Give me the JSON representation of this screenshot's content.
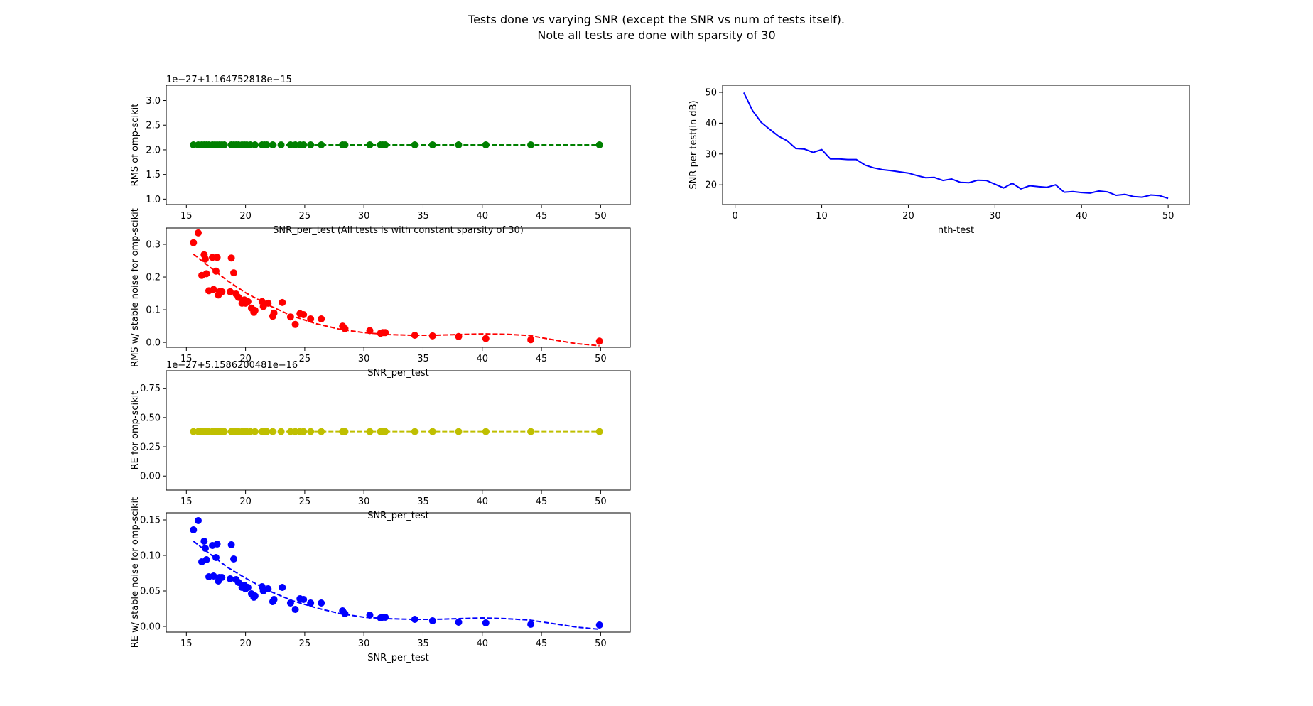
{
  "figure": {
    "title_line1": "Tests done vs varying SNR (except the SNR vs num of tests itself).",
    "title_line2": "Note all tests are done with sparsity of 30"
  },
  "chart_data": [
    {
      "id": "rms-omp",
      "type": "scatter",
      "ylabel": "RMS of omp-scikit",
      "xlabel": "SNR_per_test  (All tests is with constant sparsity of 30)",
      "offset_text": "1e−27+1.164752818e−15",
      "color": "#008000",
      "xlim": [
        13.3,
        52.5
      ],
      "ylim": [
        0.89,
        3.31
      ],
      "xticks": [
        15,
        20,
        25,
        30,
        35,
        40,
        45,
        50
      ],
      "yticks": [
        1.0,
        1.5,
        2.0,
        2.5,
        3.0
      ],
      "ytick_labels": [
        "1.0",
        "1.5",
        "2.0",
        "2.5",
        "3.0"
      ],
      "x": [
        15.6,
        16.0,
        16.3,
        16.5,
        16.7,
        16.9,
        17.2,
        17.4,
        17.6,
        17.8,
        18.0,
        18.2,
        18.8,
        19.0,
        19.2,
        19.4,
        19.7,
        19.9,
        20.1,
        20.4,
        20.8,
        21.4,
        21.6,
        21.8,
        22.3,
        23.0,
        23.8,
        24.2,
        24.6,
        24.9,
        25.5,
        26.4,
        28.2,
        28.4,
        30.5,
        31.4,
        31.6,
        31.8,
        34.3,
        35.8,
        38.0,
        40.3,
        44.1,
        49.9
      ],
      "y": [
        2.1,
        2.1,
        2.1,
        2.1,
        2.1,
        2.1,
        2.1,
        2.1,
        2.1,
        2.1,
        2.1,
        2.1,
        2.1,
        2.1,
        2.1,
        2.1,
        2.1,
        2.1,
        2.1,
        2.1,
        2.1,
        2.1,
        2.1,
        2.1,
        2.1,
        2.1,
        2.1,
        2.1,
        2.1,
        2.1,
        2.1,
        2.1,
        2.1,
        2.1,
        2.1,
        2.1,
        2.1,
        2.1,
        2.1,
        2.1,
        2.1,
        2.1,
        2.1,
        2.1
      ],
      "fit_x": [
        15.6,
        49.9
      ],
      "fit_y": [
        2.1,
        2.1
      ]
    },
    {
      "id": "rms-stable",
      "type": "scatter",
      "ylabel": "RMS w/ stable noise for omp-scikit",
      "xlabel": "SNR_per_test",
      "offset_text": "",
      "color": "#ff0000",
      "xlim": [
        13.3,
        52.5
      ],
      "ylim": [
        -0.015,
        0.35
      ],
      "xticks": [
        15,
        20,
        25,
        30,
        35,
        40,
        45,
        50
      ],
      "yticks": [
        0.0,
        0.1,
        0.2,
        0.3
      ],
      "ytick_labels": [
        "0.0",
        "0.1",
        "0.2",
        "0.3"
      ],
      "x": [
        15.6,
        16.0,
        16.3,
        16.5,
        16.6,
        16.7,
        16.9,
        17.2,
        17.3,
        17.5,
        17.6,
        17.7,
        17.8,
        18.0,
        18.7,
        18.8,
        19.0,
        19.2,
        19.4,
        19.7,
        19.9,
        20.0,
        20.2,
        20.5,
        20.7,
        20.8,
        21.4,
        21.5,
        21.9,
        22.3,
        22.4,
        23.1,
        23.8,
        24.2,
        24.6,
        24.9,
        25.5,
        26.4,
        28.2,
        28.4,
        30.5,
        31.4,
        31.6,
        31.8,
        34.3,
        35.8,
        38.0,
        40.3,
        44.1,
        49.9
      ],
      "y": [
        0.305,
        0.335,
        0.205,
        0.268,
        0.255,
        0.21,
        0.158,
        0.26,
        0.162,
        0.218,
        0.26,
        0.145,
        0.155,
        0.155,
        0.155,
        0.258,
        0.213,
        0.148,
        0.138,
        0.12,
        0.13,
        0.12,
        0.125,
        0.105,
        0.092,
        0.098,
        0.125,
        0.11,
        0.12,
        0.08,
        0.09,
        0.122,
        0.078,
        0.055,
        0.088,
        0.085,
        0.072,
        0.072,
        0.05,
        0.042,
        0.036,
        0.028,
        0.03,
        0.03,
        0.022,
        0.02,
        0.018,
        0.012,
        0.008,
        0.004
      ],
      "fit_x": [
        15.6,
        17,
        18.5,
        20,
        22,
        24,
        26,
        28,
        30,
        32,
        34,
        36,
        38,
        40,
        42,
        44,
        46,
        48,
        49.9
      ],
      "fit_y": [
        0.27,
        0.23,
        0.188,
        0.152,
        0.113,
        0.08,
        0.057,
        0.04,
        0.03,
        0.024,
        0.022,
        0.022,
        0.024,
        0.026,
        0.025,
        0.021,
        0.008,
        -0.004,
        -0.01
      ]
    },
    {
      "id": "re-omp",
      "type": "scatter",
      "ylabel": "RE for omp-scikit",
      "xlabel": "SNR_per_test",
      "offset_text": "1e−27+5.1586200481e−16",
      "color": "#bfbf00",
      "xlim": [
        13.3,
        52.5
      ],
      "ylim": [
        -0.12,
        0.9
      ],
      "xticks": [
        15,
        20,
        25,
        30,
        35,
        40,
        45,
        50
      ],
      "yticks": [
        0.0,
        0.25,
        0.5,
        0.75
      ],
      "ytick_labels": [
        "0.00",
        "0.25",
        "0.50",
        "0.75"
      ],
      "x": [
        15.6,
        16.0,
        16.3,
        16.5,
        16.7,
        16.9,
        17.2,
        17.4,
        17.6,
        17.8,
        18.0,
        18.2,
        18.8,
        19.0,
        19.2,
        19.4,
        19.7,
        19.9,
        20.1,
        20.4,
        20.8,
        21.4,
        21.6,
        21.8,
        22.3,
        23.0,
        23.8,
        24.2,
        24.6,
        24.9,
        25.5,
        26.4,
        28.2,
        28.4,
        30.5,
        31.4,
        31.6,
        31.8,
        34.3,
        35.8,
        38.0,
        40.3,
        44.1,
        49.9
      ],
      "y": [
        0.38,
        0.38,
        0.38,
        0.38,
        0.38,
        0.38,
        0.38,
        0.38,
        0.38,
        0.38,
        0.38,
        0.38,
        0.38,
        0.38,
        0.38,
        0.38,
        0.38,
        0.38,
        0.38,
        0.38,
        0.38,
        0.38,
        0.38,
        0.38,
        0.38,
        0.38,
        0.38,
        0.38,
        0.38,
        0.38,
        0.38,
        0.38,
        0.38,
        0.38,
        0.38,
        0.38,
        0.38,
        0.38,
        0.38,
        0.38,
        0.38,
        0.38,
        0.38,
        0.38
      ],
      "fit_x": [
        15.6,
        49.9
      ],
      "fit_y": [
        0.38,
        0.38
      ]
    },
    {
      "id": "re-stable",
      "type": "scatter",
      "ylabel": "RE w/ stable noise for omp-scikit",
      "xlabel": "SNR_per_test",
      "offset_text": "",
      "color": "#0000ff",
      "xlim": [
        13.3,
        52.5
      ],
      "ylim": [
        -0.008,
        0.16
      ],
      "xticks": [
        15,
        20,
        25,
        30,
        35,
        40,
        45,
        50
      ],
      "yticks": [
        0.0,
        0.05,
        0.1,
        0.15
      ],
      "ytick_labels": [
        "0.00",
        "0.05",
        "0.10",
        "0.15"
      ],
      "x": [
        15.6,
        16.0,
        16.3,
        16.5,
        16.6,
        16.7,
        16.9,
        17.2,
        17.3,
        17.5,
        17.6,
        17.7,
        17.8,
        18.0,
        18.7,
        18.8,
        19.0,
        19.2,
        19.4,
        19.7,
        19.9,
        20.0,
        20.2,
        20.5,
        20.7,
        20.8,
        21.4,
        21.5,
        21.9,
        22.3,
        22.4,
        23.1,
        23.8,
        24.2,
        24.6,
        24.9,
        25.5,
        26.4,
        28.2,
        28.4,
        30.5,
        31.4,
        31.6,
        31.8,
        34.3,
        35.8,
        38.0,
        40.3,
        44.1,
        49.9
      ],
      "y": [
        0.136,
        0.149,
        0.091,
        0.12,
        0.11,
        0.094,
        0.07,
        0.114,
        0.071,
        0.097,
        0.116,
        0.064,
        0.069,
        0.069,
        0.067,
        0.115,
        0.095,
        0.066,
        0.062,
        0.055,
        0.058,
        0.053,
        0.055,
        0.046,
        0.041,
        0.043,
        0.056,
        0.05,
        0.053,
        0.035,
        0.038,
        0.055,
        0.033,
        0.024,
        0.039,
        0.038,
        0.033,
        0.033,
        0.022,
        0.018,
        0.016,
        0.012,
        0.013,
        0.013,
        0.01,
        0.008,
        0.006,
        0.005,
        0.003,
        0.002
      ],
      "fit_x": [
        15.6,
        17,
        18.5,
        20,
        22,
        24,
        26,
        28,
        30,
        32,
        34,
        36,
        38,
        40,
        42,
        44,
        46,
        48,
        49.9
      ],
      "fit_y": [
        0.12,
        0.102,
        0.083,
        0.068,
        0.05,
        0.036,
        0.026,
        0.018,
        0.013,
        0.011,
        0.01,
        0.01,
        0.011,
        0.012,
        0.011,
        0.009,
        0.004,
        -0.001,
        -0.004
      ]
    },
    {
      "id": "snr-per-test",
      "type": "line",
      "ylabel": "SNR per test(in dB)",
      "xlabel": "nth-test",
      "offset_text": "",
      "color": "#0000ff",
      "xlim": [
        -1.45,
        52.45
      ],
      "ylim": [
        13.6,
        52.3
      ],
      "xticks": [
        0,
        10,
        20,
        30,
        40,
        50
      ],
      "yticks": [
        20,
        30,
        40,
        50
      ],
      "ytick_labels": [
        "20",
        "30",
        "40",
        "50"
      ],
      "x": [
        1,
        2,
        3,
        4,
        5,
        6,
        7,
        8,
        9,
        10,
        11,
        12,
        13,
        14,
        15,
        16,
        17,
        18,
        19,
        20,
        21,
        22,
        23,
        24,
        25,
        26,
        27,
        28,
        29,
        30,
        31,
        32,
        33,
        34,
        35,
        36,
        37,
        38,
        39,
        40,
        41,
        42,
        43,
        44,
        45,
        46,
        47,
        48,
        49,
        50
      ],
      "y": [
        49.9,
        44.1,
        40.3,
        38.0,
        35.8,
        34.3,
        31.8,
        31.6,
        30.5,
        31.4,
        28.4,
        28.4,
        28.2,
        28.2,
        26.4,
        25.5,
        24.9,
        24.6,
        24.2,
        23.8,
        23.0,
        22.3,
        22.4,
        21.4,
        21.9,
        20.8,
        20.7,
        21.5,
        21.4,
        20.2,
        19.0,
        20.5,
        18.7,
        19.7,
        19.4,
        19.2,
        20.0,
        17.6,
        17.8,
        17.5,
        17.3,
        18.0,
        17.7,
        16.6,
        16.9,
        16.2,
        16.0,
        16.7,
        16.5,
        15.6
      ]
    }
  ]
}
